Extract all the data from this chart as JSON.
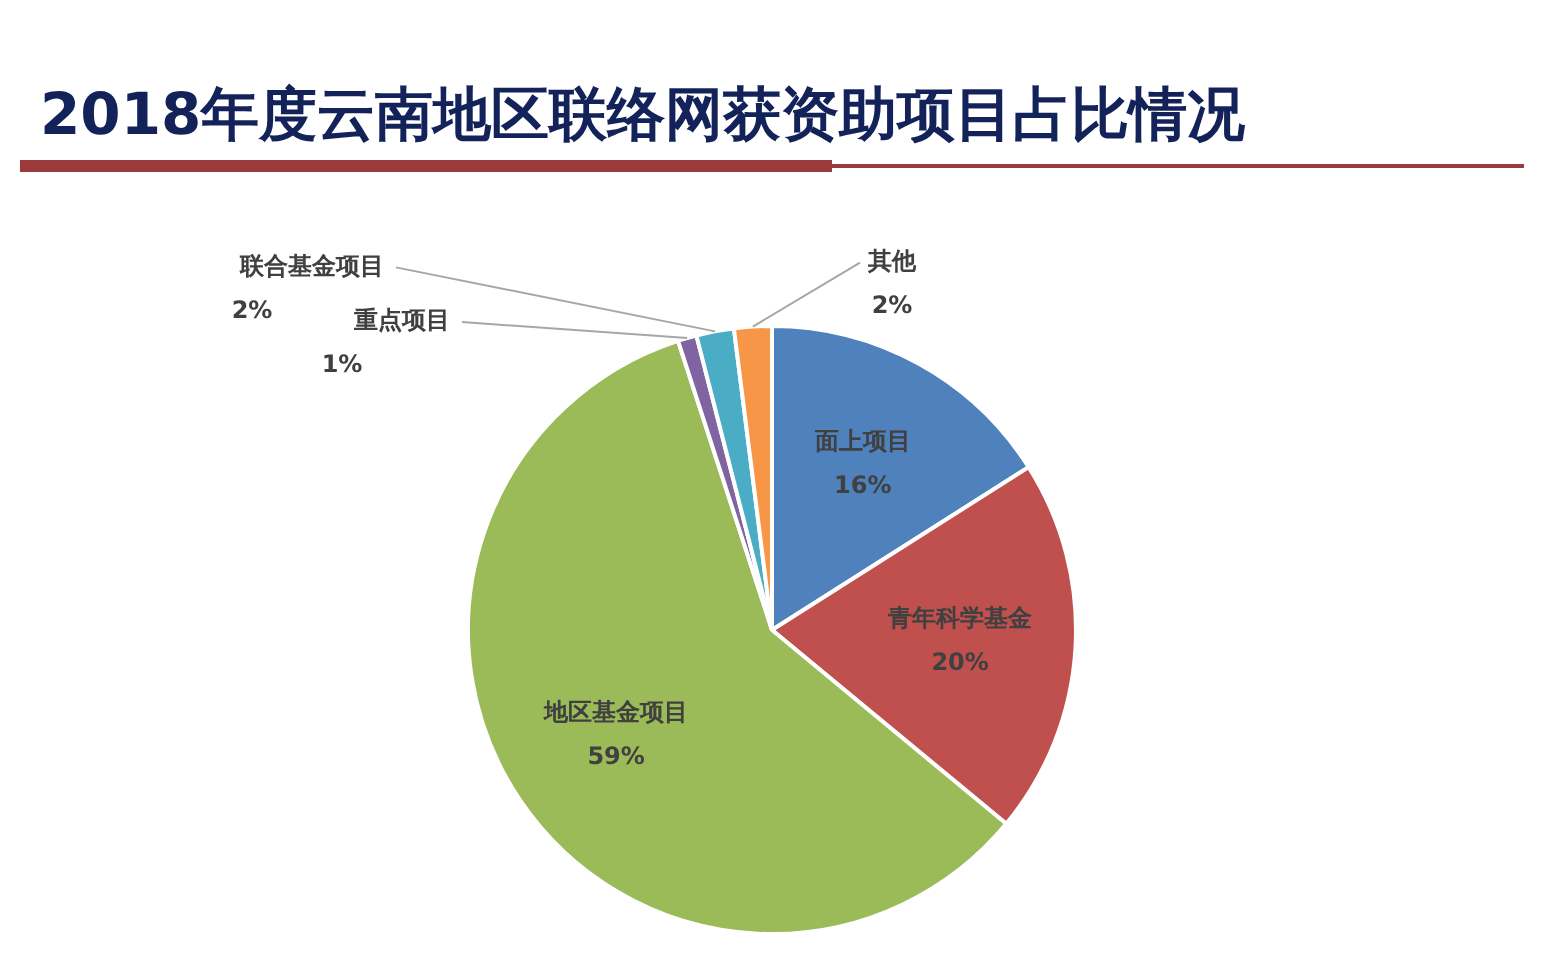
{
  "chart_data": {
    "type": "pie",
    "title": "2018年度云南地区联络网获资助项目占比情况",
    "categories": [
      "面上项目",
      "青年科学基金",
      "地区基金项目",
      "重点项目",
      "联合基金项目",
      "其他"
    ],
    "values": [
      16,
      20,
      59,
      1,
      2,
      2
    ],
    "colors": [
      "#4f81bd",
      "#c0504d",
      "#9bbb59",
      "#8064a2",
      "#4bacc6",
      "#f79646"
    ],
    "value_labels": [
      "16%",
      "20%",
      "59%",
      "1%",
      "2%",
      "2%"
    ],
    "legend": false
  }
}
